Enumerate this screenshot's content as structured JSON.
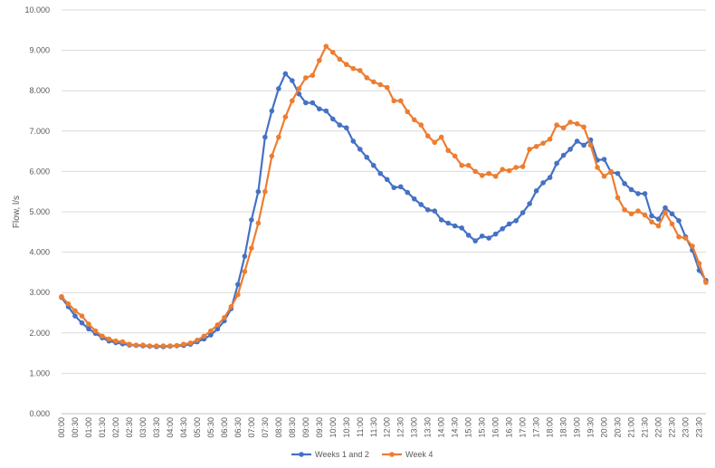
{
  "chart_data": {
    "type": "line",
    "title": "",
    "xlabel": "",
    "ylabel": "Flow, l/s",
    "ylim": [
      0,
      10
    ],
    "y_ticks": [
      "0.000",
      "1.000",
      "2.000",
      "3.000",
      "4.000",
      "5.000",
      "6.000",
      "7.000",
      "8.000",
      "9.000",
      "10.000"
    ],
    "grid": "horizontal",
    "legend_position": "bottom",
    "x": [
      "00:00",
      "00:15",
      "00:30",
      "00:45",
      "01:00",
      "01:15",
      "01:30",
      "01:45",
      "02:00",
      "02:15",
      "02:30",
      "02:45",
      "03:00",
      "03:15",
      "03:30",
      "03:45",
      "04:00",
      "04:15",
      "04:30",
      "04:45",
      "05:00",
      "05:15",
      "05:30",
      "05:45",
      "06:00",
      "06:15",
      "06:30",
      "06:45",
      "07:00",
      "07:15",
      "07:30",
      "07:45",
      "08:00",
      "08:15",
      "08:30",
      "08:45",
      "09:00",
      "09:15",
      "09:30",
      "09:45",
      "10:00",
      "10:15",
      "10:30",
      "10:45",
      "11:00",
      "11:15",
      "11:30",
      "11:45",
      "12:00",
      "12:15",
      "12:30",
      "12:45",
      "13:00",
      "13:15",
      "13:30",
      "13:45",
      "14:00",
      "14:15",
      "14:30",
      "14:45",
      "15:00",
      "15:15",
      "15:30",
      "15:45",
      "16:00",
      "16:15",
      "16:30",
      "16:45",
      "17:00",
      "17:15",
      "17:30",
      "17:45",
      "18:00",
      "18:15",
      "18:30",
      "18:45",
      "19:00",
      "19:15",
      "19:30",
      "19:45",
      "20:00",
      "20:15",
      "20:30",
      "20:45",
      "21:00",
      "21:15",
      "21:30",
      "21:45",
      "22:00",
      "22:15",
      "22:30",
      "22:45",
      "23:00",
      "23:15",
      "23:30",
      "23:45"
    ],
    "x_tick_labels": [
      "00:00",
      "00:30",
      "01:00",
      "01:30",
      "02:00",
      "02:30",
      "03:00",
      "03:30",
      "04:00",
      "04:30",
      "05:00",
      "05:30",
      "06:00",
      "06:30",
      "07:00",
      "07:30",
      "08:00",
      "08:30",
      "09:00",
      "09:30",
      "10:00",
      "10:30",
      "11:00",
      "11:30",
      "12:00",
      "12:30",
      "13:00",
      "13:30",
      "14:00",
      "14:30",
      "15:00",
      "15:30",
      "16:00",
      "16:30",
      "17:00",
      "17:30",
      "18:00",
      "18:30",
      "19:00",
      "19:30",
      "20:00",
      "20:30",
      "21:00",
      "21:30",
      "22:00",
      "22:30",
      "23:00",
      "23:30"
    ],
    "series": [
      {
        "name": "Weeks 1 and 2",
        "color": "#4472C4",
        "values": [
          2.88,
          2.65,
          2.42,
          2.25,
          2.1,
          1.99,
          1.88,
          1.8,
          1.76,
          1.73,
          1.7,
          1.69,
          1.68,
          1.67,
          1.66,
          1.66,
          1.67,
          1.68,
          1.69,
          1.72,
          1.78,
          1.85,
          1.95,
          2.1,
          2.3,
          2.6,
          3.2,
          3.9,
          4.8,
          5.5,
          6.85,
          7.5,
          8.05,
          8.42,
          8.25,
          7.92,
          7.7,
          7.7,
          7.55,
          7.5,
          7.3,
          7.15,
          7.08,
          6.75,
          6.55,
          6.35,
          6.15,
          5.95,
          5.8,
          5.6,
          5.62,
          5.48,
          5.32,
          5.18,
          5.05,
          5.02,
          4.8,
          4.72,
          4.65,
          4.6,
          4.42,
          4.28,
          4.4,
          4.35,
          4.45,
          4.58,
          4.7,
          4.78,
          4.98,
          5.2,
          5.52,
          5.72,
          5.85,
          6.2,
          6.4,
          6.55,
          6.75,
          6.65,
          6.78,
          6.28,
          6.3,
          5.98,
          5.95,
          5.7,
          5.55,
          5.45,
          5.45,
          4.9,
          4.82,
          5.1,
          4.95,
          4.78,
          4.38,
          4.05,
          3.55,
          3.3
        ]
      },
      {
        "name": "Week 4",
        "color": "#ED7D31",
        "values": [
          2.9,
          2.72,
          2.55,
          2.42,
          2.22,
          2.05,
          1.92,
          1.85,
          1.8,
          1.78,
          1.72,
          1.7,
          1.7,
          1.68,
          1.68,
          1.68,
          1.68,
          1.69,
          1.72,
          1.75,
          1.82,
          1.92,
          2.05,
          2.2,
          2.38,
          2.65,
          2.95,
          3.52,
          4.1,
          4.72,
          5.5,
          6.38,
          6.85,
          7.35,
          7.75,
          8.05,
          8.32,
          8.38,
          8.75,
          9.1,
          8.95,
          8.78,
          8.65,
          8.55,
          8.5,
          8.32,
          8.22,
          8.15,
          8.08,
          7.75,
          7.75,
          7.48,
          7.28,
          7.15,
          6.88,
          6.72,
          6.85,
          6.52,
          6.38,
          6.15,
          6.15,
          6.0,
          5.9,
          5.95,
          5.88,
          6.05,
          6.02,
          6.1,
          6.12,
          6.55,
          6.62,
          6.7,
          6.8,
          7.15,
          7.08,
          7.22,
          7.18,
          7.1,
          6.65,
          6.1,
          5.88,
          6.0,
          5.35,
          5.05,
          4.95,
          5.02,
          4.92,
          4.75,
          4.65,
          4.98,
          4.7,
          4.38,
          4.35,
          4.15,
          3.72,
          3.25
        ]
      }
    ]
  }
}
